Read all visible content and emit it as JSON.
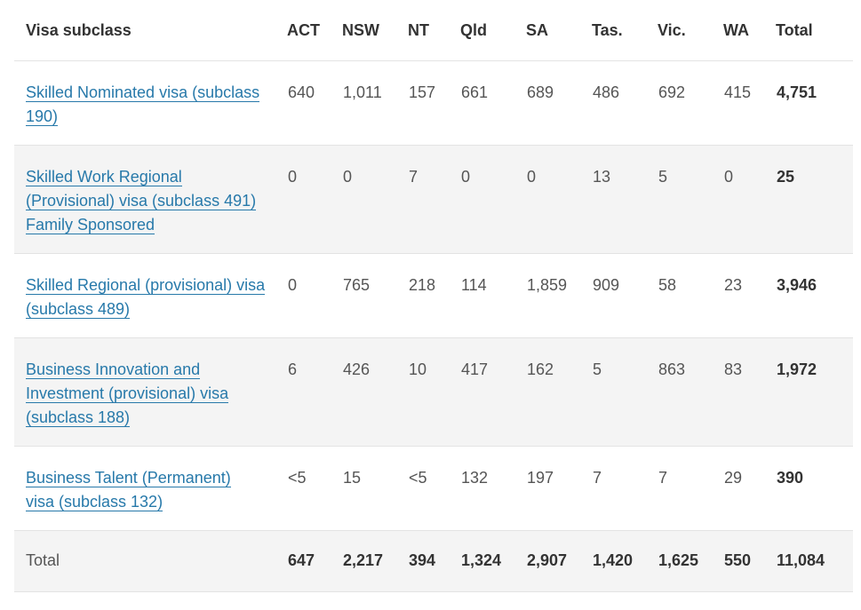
{
  "table": {
    "headers": [
      "Visa subclass",
      "ACT",
      "NSW",
      "NT",
      "Qld",
      "SA",
      "Tas.",
      "Vic.",
      "WA",
      "Total"
    ],
    "rows": [
      {
        "label_lines": [
          "Skilled Nominated visa (subclass",
          "190)"
        ],
        "values": [
          "640",
          "1,011",
          "157",
          "661",
          "689",
          "486",
          "692",
          "415"
        ],
        "total": "4,751"
      },
      {
        "label_lines": [
          "Skilled Work Regional",
          "(Provisional) visa (subclass 491)",
          "Family Sponsored"
        ],
        "values": [
          "0",
          "0",
          "7",
          "0",
          "0",
          "13",
          "5",
          "0"
        ],
        "total": "25"
      },
      {
        "label_lines": [
          "Skilled Regional (provisional) visa",
          "(subclass 489)"
        ],
        "values": [
          "0",
          "765",
          "218",
          "114",
          "1,859",
          "909",
          "58",
          "23"
        ],
        "total": "3,946"
      },
      {
        "label_lines": [
          "Business Innovation and",
          "Investment (provisional) visa",
          "(subclass 188)"
        ],
        "values": [
          "6",
          "426",
          "10",
          "417",
          "162",
          "5",
          "863",
          "83"
        ],
        "total": "1,972"
      },
      {
        "label_lines": [
          "Business Talent (Permanent)",
          "visa (subclass 132)"
        ],
        "values": [
          "<5",
          "15",
          "<5",
          "132",
          "197",
          "7",
          "7",
          "29"
        ],
        "total": "390"
      }
    ],
    "total_row": {
      "label": "Total",
      "values": [
        "647",
        "2,217",
        "394",
        "1,324",
        "2,907",
        "1,420",
        "1,625",
        "550"
      ],
      "total": "11,084"
    }
  }
}
